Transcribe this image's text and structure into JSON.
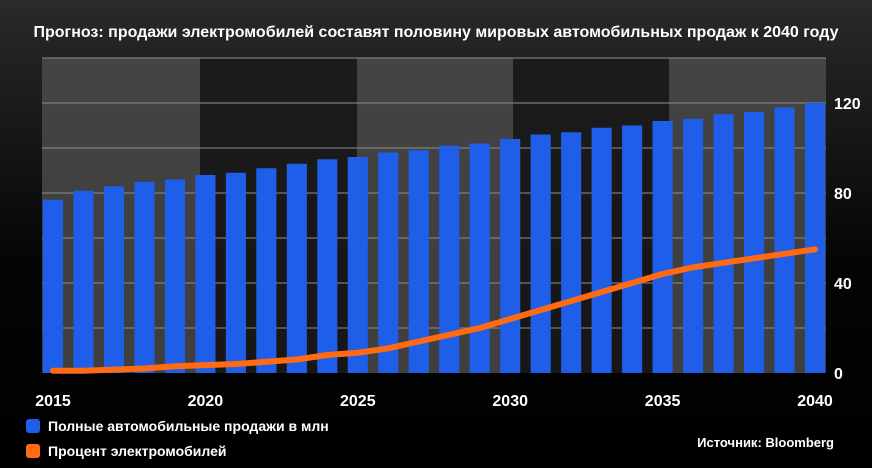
{
  "chart_data": {
    "type": "bar",
    "title": "Прогноз: продажи электромобилей составят половину мировых автомобильных продаж к 2040 году",
    "x": [
      2015,
      2016,
      2017,
      2018,
      2019,
      2020,
      2021,
      2022,
      2023,
      2024,
      2025,
      2026,
      2027,
      2028,
      2029,
      2030,
      2031,
      2032,
      2033,
      2034,
      2035,
      2036,
      2037,
      2038,
      2039,
      2040
    ],
    "x_tick_labels": [
      "2015",
      "2020",
      "2025",
      "2030",
      "2035",
      "2040"
    ],
    "y_tick_labels": [
      "0",
      "40",
      "80",
      "120"
    ],
    "ylim": [
      0,
      140
    ],
    "series": [
      {
        "name": "Полные автомобильные продажи в млн",
        "kind": "bar",
        "color": "#1f5ee8",
        "values": [
          77,
          81,
          83,
          85,
          86,
          88,
          89,
          91,
          93,
          95,
          96,
          98,
          99,
          101,
          102,
          104,
          106,
          107,
          109,
          110,
          112,
          113,
          115,
          116,
          118,
          120
        ]
      },
      {
        "name": "Процент электромобилей",
        "kind": "line",
        "color": "#ff6a13",
        "values": [
          1,
          1,
          1.5,
          2,
          3,
          3.5,
          4,
          5,
          6,
          8,
          9,
          11,
          14,
          17,
          20,
          24,
          28,
          32,
          36,
          40,
          44,
          47,
          49,
          51,
          53,
          55
        ]
      }
    ],
    "grid": true,
    "legend": "bottom-left"
  },
  "source_note": "Источник: Bloomberg"
}
